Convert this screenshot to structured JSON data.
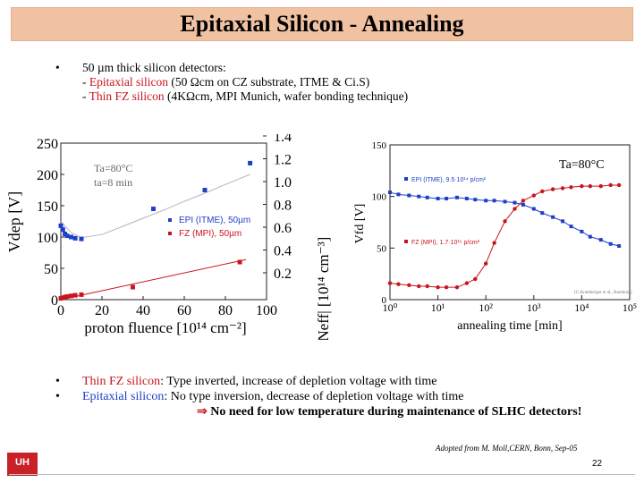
{
  "header": {
    "title": "Epitaxial Silicon - Annealing"
  },
  "intro": {
    "bullet": "•",
    "line1": "50 µm thick silicon detectors:",
    "line2_dash": "- ",
    "line2_red": "Epitaxial silicon",
    "line2_rest": " (50 Ωcm on CZ substrate, ITME & Ci.S)",
    "line3_dash": "- ",
    "line3_red": "Thin FZ silicon",
    "line3_rest": "  (4KΩcm, MPI Munich, wafer bonding technique)"
  },
  "colors": {
    "title_bg": "#f1c2a2",
    "red": "#c8141e",
    "blue": "#1f3fc8",
    "fit_line": "#b4b4c8"
  },
  "chart_data": [
    {
      "type": "scatter",
      "ylabel": "Vdep [V]",
      "y2label": "|Neff| [10¹⁴ cm⁻³]",
      "xlabel": "proton fluence [10¹⁴ cm⁻²]",
      "xlim": [
        0,
        100
      ],
      "ylim": [
        0,
        250
      ],
      "x_ticks": [
        "0",
        "20",
        "40",
        "60",
        "80",
        "100"
      ],
      "y_ticks": [
        "0",
        "50",
        "100",
        "150",
        "200",
        "250"
      ],
      "y2_ticks": [
        "0.2",
        "0.4",
        "0.6",
        "0.8",
        "1.0",
        "1.2",
        "1.4"
      ],
      "annotation1": "Ta=80°C",
      "annotation2": "ta=8 min",
      "series": [
        {
          "name": "EPI (ITME), 50µm",
          "color": "#1f3fc8",
          "x": [
            0,
            1,
            2,
            3,
            5,
            7,
            10,
            45,
            70,
            92
          ],
          "y": [
            118,
            112,
            105,
            102,
            100,
            98,
            97,
            145,
            175,
            218
          ]
        },
        {
          "name": "FZ (MPI), 50µm",
          "color": "#c8141e",
          "x": [
            0,
            1,
            2,
            3,
            5,
            7,
            10,
            35,
            87
          ],
          "y": [
            2,
            3,
            4,
            5,
            6,
            7,
            8,
            20,
            60
          ]
        }
      ],
      "fits": [
        {
          "series": "EPI",
          "x": [
            0,
            5,
            10,
            20,
            30,
            40,
            50,
            60,
            70,
            80,
            92
          ],
          "y": [
            125,
            107,
            99,
            104,
            117,
            130,
            143,
            157,
            170,
            184,
            200
          ]
        },
        {
          "series": "FZ",
          "x": [
            0,
            90
          ],
          "y": [
            0,
            64
          ]
        }
      ]
    },
    {
      "type": "scatter",
      "ylabel": "Vfd [V]",
      "xlabel": "annealing time [min]",
      "xscale": "log",
      "xlim": [
        1,
        100000
      ],
      "ylim": [
        0,
        150
      ],
      "x_ticks": [
        "10⁰",
        "10¹",
        "10²",
        "10³",
        "10⁴",
        "10⁵"
      ],
      "y_ticks": [
        "0",
        "50",
        "100",
        "150"
      ],
      "annotation": "Ta=80°C",
      "note": "[G.Kramberger et al., Hamburg]",
      "series": [
        {
          "name": "EPI (ITME), 9.5·10¹⁴ p/cm²",
          "color": "#1f3fc8",
          "x": [
            1,
            1.5,
            2.5,
            4,
            6,
            10,
            15,
            25,
            40,
            60,
            100,
            150,
            250,
            400,
            600,
            1000,
            1500,
            2500,
            4000,
            6000,
            10000,
            15000,
            25000,
            40000,
            60000
          ],
          "y": [
            104,
            102,
            101,
            100,
            99,
            98,
            98,
            99,
            98,
            97,
            96,
            96,
            95,
            94,
            92,
            88,
            84,
            80,
            76,
            71,
            66,
            61,
            58,
            54,
            52
          ]
        },
        {
          "name": "FZ (MPI), 1.7·10¹⁵ p/cm²",
          "color": "#c8141e",
          "x": [
            1,
            1.5,
            2.5,
            4,
            6,
            10,
            15,
            25,
            40,
            60,
            100,
            150,
            250,
            400,
            600,
            1000,
            1500,
            2500,
            4000,
            6000,
            10000,
            15000,
            25000,
            40000,
            60000
          ],
          "y": [
            16,
            15,
            14,
            13,
            13,
            12,
            12,
            12,
            16,
            20,
            35,
            55,
            76,
            88,
            96,
            101,
            105,
            107,
            108,
            109,
            110,
            110,
            110,
            111,
            111
          ]
        }
      ]
    }
  ],
  "conclusions": {
    "bullet": "•",
    "b1_red": "Thin FZ silicon",
    "b1_rest": ": Type inverted, increase of depletion voltage with time",
    "b2_blue": "Epitaxial silicon",
    "b2_rest": ": No type inversion, decrease of depletion voltage with time",
    "arrow": "⇒",
    "b3": " No need for low temperature during maintenance of  SLHC detectors!"
  },
  "footer": {
    "adopted": "Adopted from M. Moll,CERN, Bonn, Sep-05",
    "page": "22",
    "logo": "UH"
  }
}
